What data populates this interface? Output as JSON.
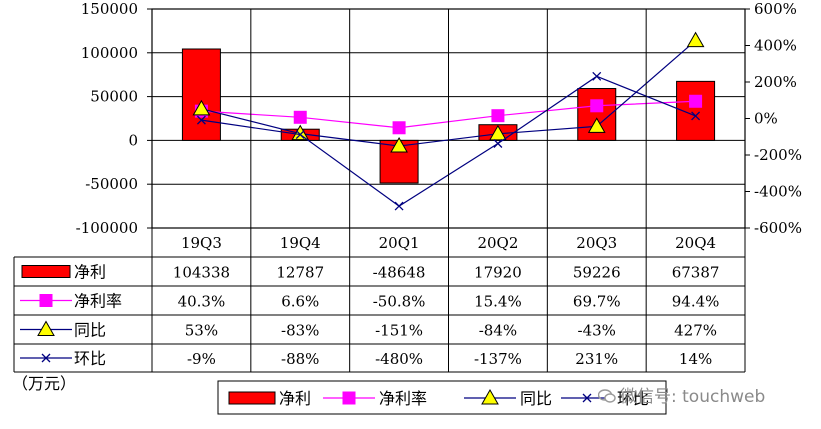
{
  "chart_data": {
    "type": "bar",
    "categories": [
      "19Q3",
      "19Q4",
      "20Q1",
      "20Q2",
      "20Q3",
      "20Q4"
    ],
    "series": [
      {
        "name": "净利",
        "kind": "bar",
        "axis": "left",
        "color": "#ff0000",
        "values": [
          104338,
          12787,
          -48648,
          17920,
          59226,
          67387
        ],
        "labels": [
          "104338",
          "12787",
          "-48648",
          "17920",
          "59226",
          "67387"
        ]
      },
      {
        "name": "净利率",
        "kind": "line",
        "axis": "right",
        "marker": "square",
        "color": "#ff00ff",
        "values": [
          40.3,
          6.6,
          -50.8,
          15.4,
          69.7,
          94.4
        ],
        "labels": [
          "40.3%",
          "6.6%",
          "-50.8%",
          "15.4%",
          "69.7%",
          "94.4%"
        ]
      },
      {
        "name": "同比",
        "kind": "line",
        "axis": "right",
        "marker": "triangle",
        "color": "#ffff00",
        "values": [
          53,
          -83,
          -151,
          -84,
          -43,
          427
        ],
        "labels": [
          "53%",
          "-83%",
          "-151%",
          "-84%",
          "-43%",
          "427%"
        ]
      },
      {
        "name": "环比",
        "kind": "line",
        "axis": "right",
        "marker": "x",
        "color": "#000080",
        "values": [
          -9,
          -88,
          -480,
          -137,
          231,
          14
        ],
        "labels": [
          "-9%",
          "-88%",
          "-480%",
          "-137%",
          "231%",
          "14%"
        ]
      }
    ],
    "y_left": {
      "range": [
        -100000,
        150000
      ],
      "ticks": [
        "150000",
        "100000",
        "50000",
        "0",
        "-50000",
        "-100000"
      ]
    },
    "y_right": {
      "range": [
        -600,
        600
      ],
      "ticks": [
        "600%",
        "400%",
        "200%",
        "0%",
        "-200%",
        "-400%",
        "-600%"
      ]
    },
    "unit_note": "（万元）",
    "grid": "horizontal",
    "legend_position": "bottom"
  },
  "watermark": "微信号: touchweb"
}
